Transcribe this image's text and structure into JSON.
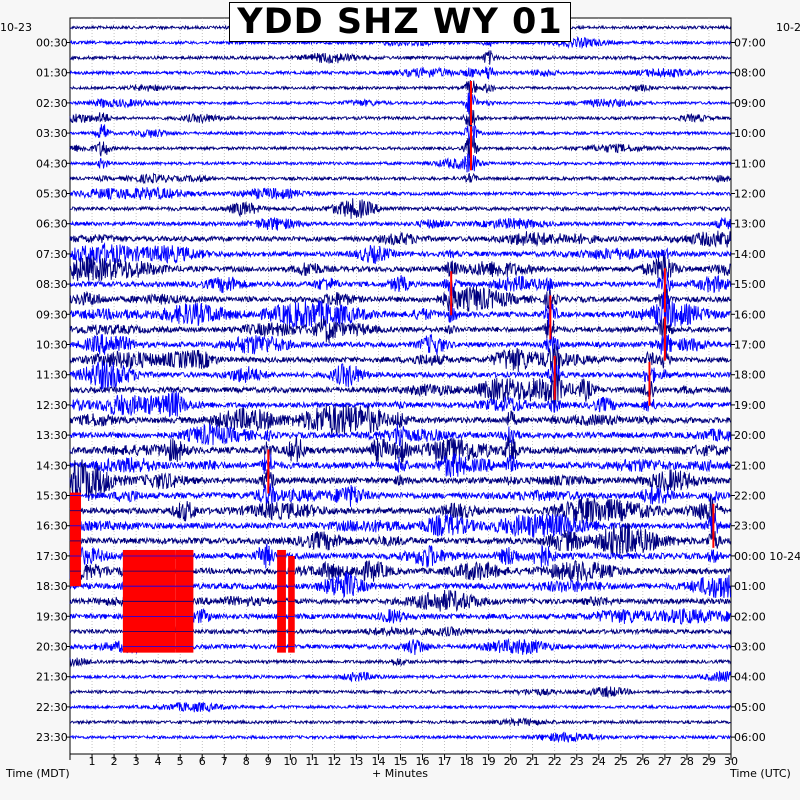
{
  "chart_data": {
    "type": "line",
    "title": "YDD SHZ WY 01",
    "left_corner_label": "10-23",
    "right_corner_label": "10-2",
    "xlabel": "+ Minutes",
    "left_axis_label": "Time (MDT)",
    "right_axis_label": "Time (UTC)",
    "xlim": [
      0,
      30
    ],
    "x_ticks": [
      "1",
      "2",
      "3",
      "4",
      "5",
      "6",
      "7",
      "8",
      "9",
      "10",
      "11",
      "12",
      "13",
      "14",
      "15",
      "16",
      "17",
      "18",
      "19",
      "20",
      "21",
      "22",
      "23",
      "24",
      "25",
      "26",
      "27",
      "28",
      "29",
      "30"
    ],
    "left_ticks": [
      "00:30",
      "01:30",
      "02:30",
      "03:30",
      "04:30",
      "05:30",
      "06:30",
      "07:30",
      "08:30",
      "09:30",
      "10:30",
      "11:30",
      "12:30",
      "13:30",
      "14:30",
      "15:30",
      "16:30",
      "17:30",
      "18:30",
      "19:30",
      "20:30",
      "21:30",
      "22:30",
      "23:30"
    ],
    "right_ticks": [
      "07:00",
      "08:00",
      "09:00",
      "10:00",
      "11:00",
      "12:00",
      "13:00",
      "14:00",
      "15:00",
      "16:00",
      "17:00",
      "18:00",
      "19:00",
      "20:00",
      "21:00",
      "22:00",
      "23:00",
      "00:00 10-24",
      "01:00",
      "02:00",
      "03:00",
      "04:00",
      "05:00",
      "06:00"
    ],
    "traces_per_hour": 2,
    "trace_colors": [
      "#000080",
      "#0000ff"
    ],
    "clip_color": "#ff0000",
    "hourly_activity": [
      0.25,
      0.3,
      0.2,
      0.25,
      0.25,
      0.3,
      0.45,
      0.7,
      0.75,
      0.8,
      0.75,
      0.75,
      0.8,
      0.9,
      1.0,
      0.95,
      0.9,
      0.95,
      0.9,
      0.75,
      0.55,
      0.3,
      0.25,
      0.25
    ],
    "events": [
      {
        "minute": 18.2,
        "hour": 2.5,
        "amp": 0.9,
        "clipped": true
      },
      {
        "minute": 18.2,
        "hour": 4.0,
        "amp": 0.9,
        "clipped": true
      },
      {
        "minute": 1.5,
        "hour": 3.7,
        "amp": 0.7,
        "clipped": false
      },
      {
        "minute": 19.0,
        "hour": 1.3,
        "amp": 0.6,
        "clipped": false
      },
      {
        "minute": 27.0,
        "hour": 8.7,
        "amp": 1.0,
        "clipped": true
      },
      {
        "minute": 27.0,
        "hour": 10.3,
        "amp": 1.0,
        "clipped": true
      },
      {
        "minute": 21.8,
        "hour": 9.6,
        "amp": 1.0,
        "clipped": true
      },
      {
        "minute": 22.0,
        "hour": 11.6,
        "amp": 1.0,
        "clipped": true
      },
      {
        "minute": 26.3,
        "hour": 11.8,
        "amp": 0.9,
        "clipped": true
      },
      {
        "minute": 17.3,
        "hour": 8.8,
        "amp": 0.9,
        "clipped": true
      },
      {
        "minute": 9.0,
        "hour": 14.7,
        "amp": 0.9,
        "clipped": true
      },
      {
        "minute": 29.2,
        "hour": 16.5,
        "amp": 1.0,
        "clipped": true
      },
      {
        "minute": 15.0,
        "hour": 13.8,
        "amp": 1.0,
        "clipped": false
      },
      {
        "minute": 20.0,
        "hour": 13.8,
        "amp": 1.0,
        "clipped": false
      }
    ],
    "clip_blocks": [
      {
        "x0": 0.0,
        "x1": 0.5,
        "y0_hour": 15.4,
        "y1_hour": 18.5
      },
      {
        "x0": 2.4,
        "x1": 4.8,
        "y0_hour": 17.3,
        "y1_hour": 20.7
      },
      {
        "x0": 4.8,
        "x1": 5.6,
        "y0_hour": 17.3,
        "y1_hour": 20.7
      },
      {
        "x0": 9.4,
        "x1": 9.8,
        "y0_hour": 17.3,
        "y1_hour": 20.7
      },
      {
        "x0": 9.9,
        "x1": 10.2,
        "y0_hour": 17.5,
        "y1_hour": 20.7
      }
    ],
    "grid": true
  }
}
